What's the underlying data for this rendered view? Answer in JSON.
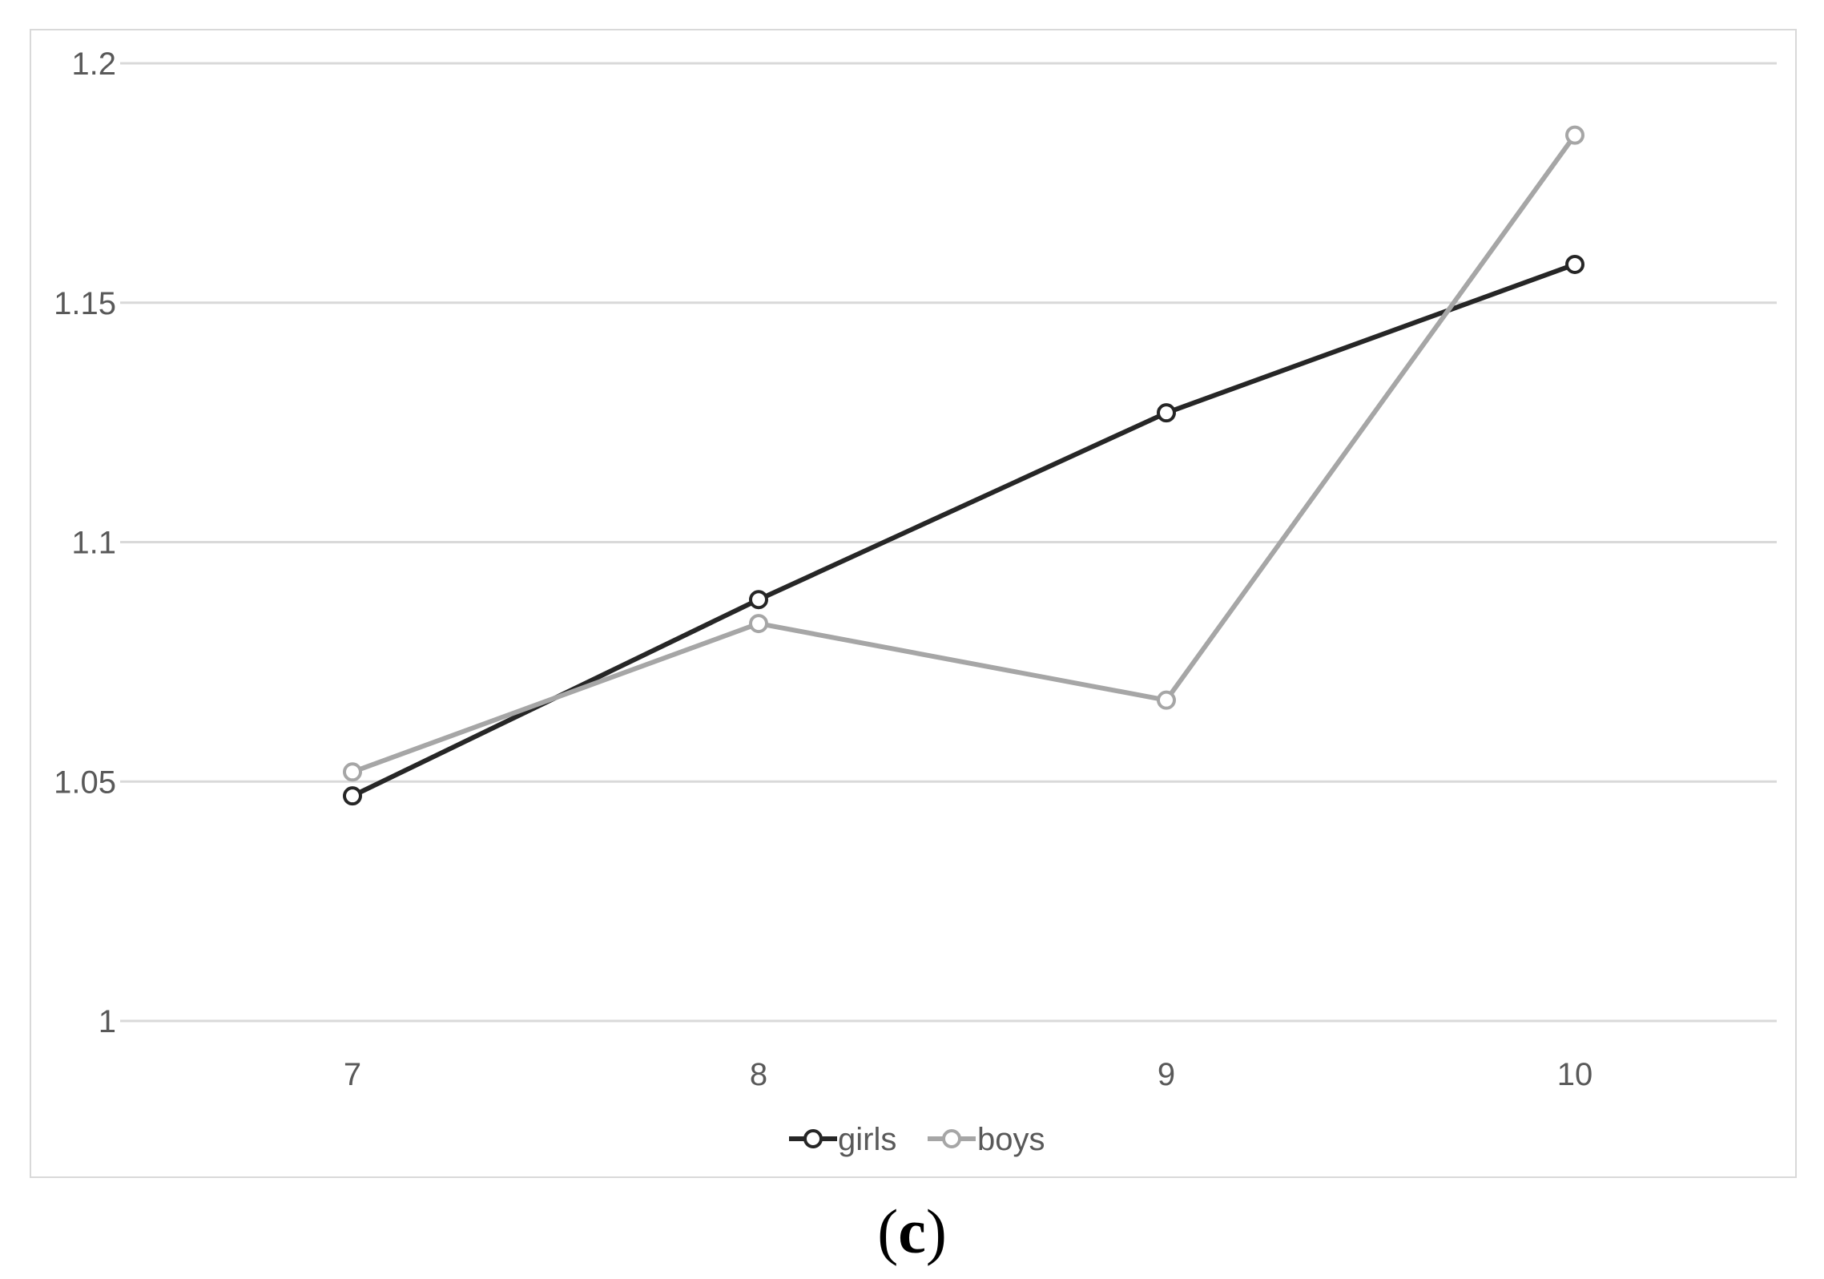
{
  "chart_data": {
    "type": "line",
    "x": [
      7,
      8,
      9,
      10
    ],
    "categories": [
      "7",
      "8",
      "9",
      "10"
    ],
    "series": [
      {
        "name": "girls",
        "values": [
          1.047,
          1.088,
          1.127,
          1.158
        ],
        "color": "#262626",
        "marker": "circle-open"
      },
      {
        "name": "boys",
        "values": [
          1.052,
          1.083,
          1.067,
          1.185
        ],
        "color": "#a6a6a6",
        "marker": "circle-open"
      }
    ],
    "ylim": [
      1,
      1.2
    ],
    "yticks": [
      "1",
      "1.05",
      "1.1",
      "1.15",
      "1.2"
    ],
    "grid": true,
    "legend": "bottom"
  },
  "caption": {
    "open": "(",
    "letter": "c",
    "close": ")"
  }
}
